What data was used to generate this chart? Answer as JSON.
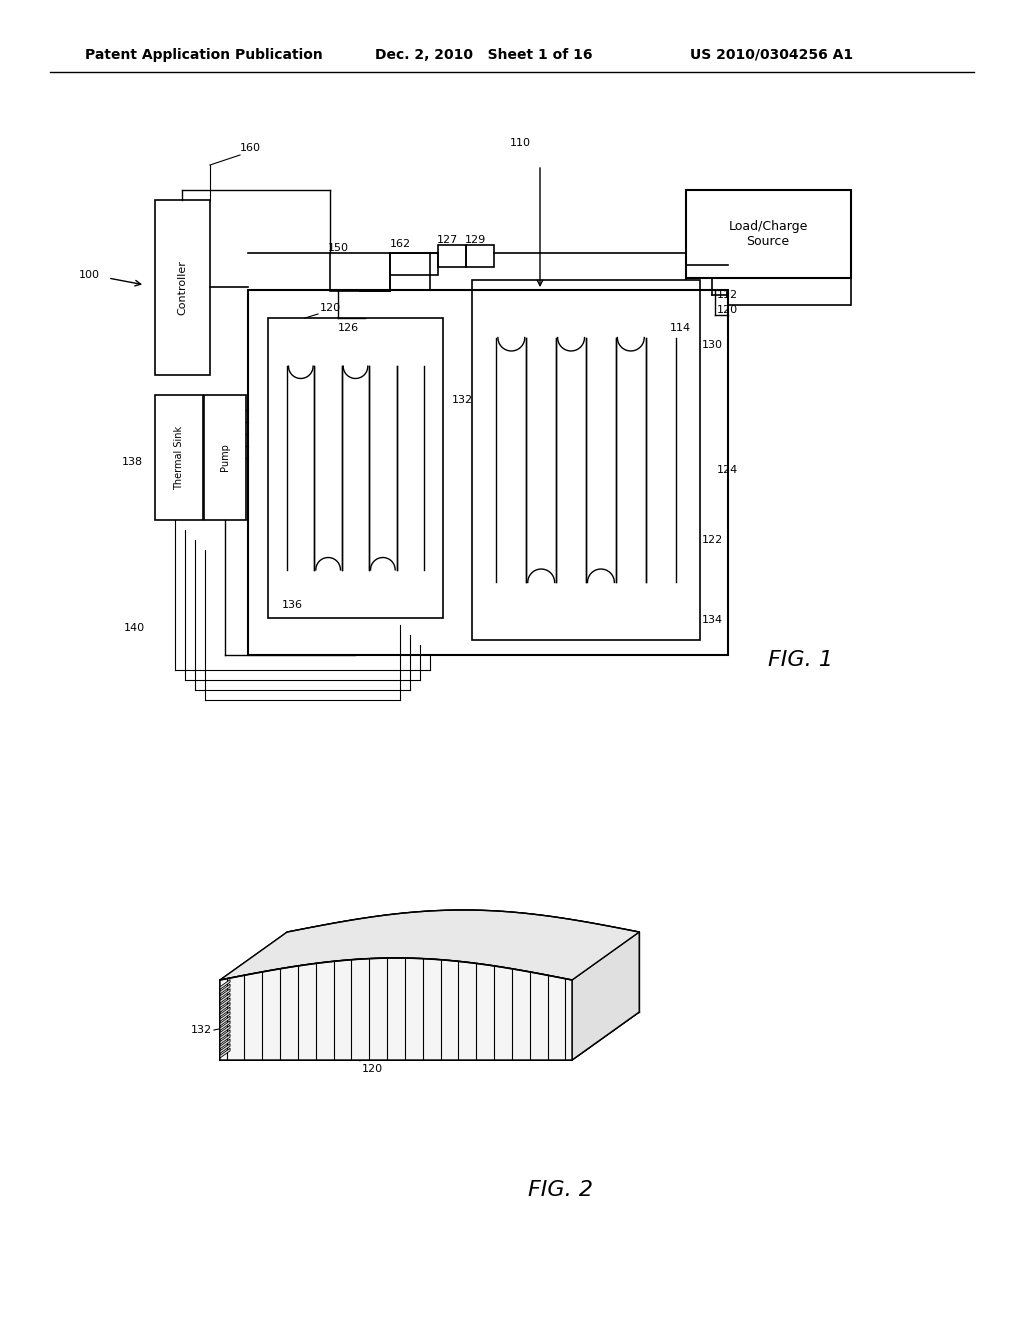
{
  "bg_color": "#ffffff",
  "line_color": "#000000",
  "header_left": "Patent Application Publication",
  "header_mid": "Dec. 2, 2010   Sheet 1 of 16",
  "header_right": "US 2010/0304256 A1",
  "fig1_label": "FIG. 1",
  "fig2_label": "FIG. 2"
}
